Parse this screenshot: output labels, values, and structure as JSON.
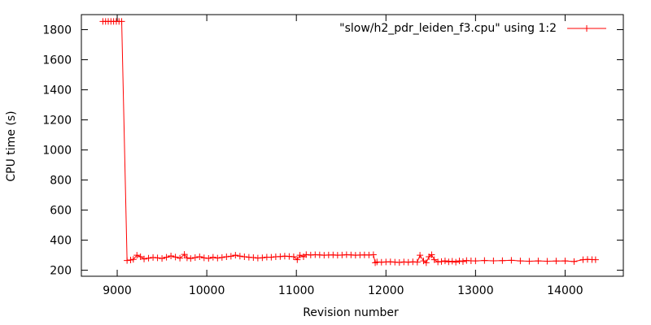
{
  "chart_data": {
    "type": "line",
    "title": "",
    "xlabel": "Revision number",
    "ylabel": "CPU time (s)",
    "xlim": [
      8600,
      14650
    ],
    "ylim": [
      160,
      1900
    ],
    "xticks": [
      9000,
      10000,
      11000,
      12000,
      13000,
      14000
    ],
    "yticks": [
      200,
      400,
      600,
      800,
      1000,
      1200,
      1400,
      1600,
      1800
    ],
    "grid": false,
    "legend_position": "top-right",
    "point_marker": "plus",
    "series": [
      {
        "name": "\"slow/h2_pdr_leiden_f3.cpu\" using 1:2",
        "color": "#ff0000",
        "x": [
          8840,
          8870,
          8900,
          8930,
          8960,
          8990,
          9020,
          9050,
          9110,
          9150,
          9180,
          9220,
          9260,
          9300,
          9350,
          9400,
          9450,
          9500,
          9550,
          9600,
          9650,
          9700,
          9750,
          9780,
          9820,
          9870,
          9920,
          9970,
          10020,
          10070,
          10120,
          10170,
          10220,
          10270,
          10320,
          10370,
          10420,
          10470,
          10520,
          10570,
          10620,
          10670,
          10720,
          10770,
          10820,
          10870,
          10920,
          10970,
          11010,
          11040,
          11080,
          11110,
          11160,
          11210,
          11260,
          11310,
          11360,
          11410,
          11460,
          11510,
          11560,
          11610,
          11660,
          11710,
          11760,
          11810,
          11860,
          11880,
          11900,
          11950,
          12000,
          12050,
          12100,
          12150,
          12200,
          12250,
          12300,
          12350,
          12380,
          12420,
          12450,
          12480,
          12510,
          12540,
          12580,
          12620,
          12660,
          12700,
          12740,
          12780,
          12820,
          12860,
          12900,
          12950,
          13000,
          13100,
          13200,
          13300,
          13400,
          13500,
          13600,
          13700,
          13800,
          13900,
          14000,
          14100,
          14200,
          14250,
          14300,
          14340
        ],
        "y": [
          1855,
          1855,
          1855,
          1855,
          1855,
          1855,
          1855,
          1855,
          265,
          268,
          272,
          300,
          290,
          275,
          280,
          285,
          282,
          278,
          286,
          295,
          288,
          280,
          305,
          282,
          278,
          284,
          290,
          282,
          279,
          286,
          281,
          285,
          290,
          293,
          300,
          294,
          290,
          286,
          284,
          281,
          283,
          287,
          286,
          290,
          291,
          294,
          292,
          290,
          270,
          300,
          290,
          304,
          301,
          303,
          302,
          300,
          301,
          302,
          300,
          301,
          303,
          302,
          300,
          301,
          302,
          301,
          303,
          250,
          255,
          253,
          255,
          256,
          254,
          252,
          255,
          253,
          256,
          254,
          300,
          262,
          250,
          290,
          303,
          270,
          255,
          258,
          262,
          256,
          260,
          254,
          262,
          258,
          265,
          263,
          262,
          265,
          263,
          264,
          266,
          262,
          260,
          262,
          260,
          261,
          262,
          258,
          270,
          272,
          271,
          270
        ]
      }
    ]
  }
}
